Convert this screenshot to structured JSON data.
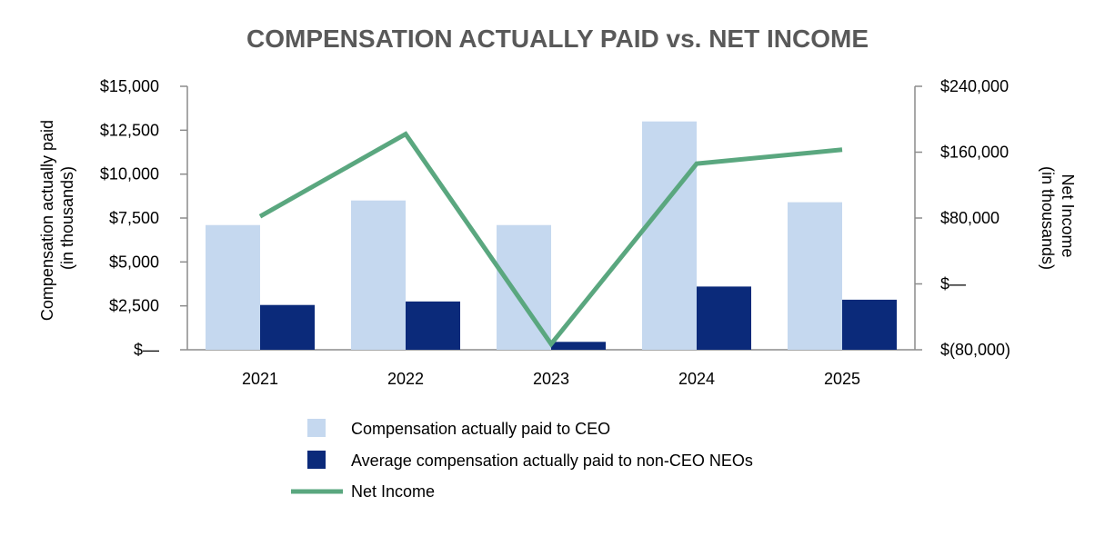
{
  "chart_data": {
    "type": "bar",
    "title": "COMPENSATION ACTUALLY PAID vs. NET INCOME",
    "categories": [
      "2021",
      "2022",
      "2023",
      "2024",
      "2025"
    ],
    "ylabel_left_lines": [
      "Compensation actually paid",
      "(in thousands)"
    ],
    "ylabel_right_lines": [
      "Net Income",
      "(in thousands)"
    ],
    "y_left": {
      "ylim": [
        0,
        15000
      ],
      "ticks": [
        0,
        2500,
        5000,
        7500,
        10000,
        12500,
        15000
      ],
      "tick_labels": [
        "$—",
        "$2,500",
        "$5,000",
        "$7,500",
        "$10,000",
        "$12,500",
        "$15,000"
      ]
    },
    "y_right": {
      "ylim": [
        -80000,
        240000
      ],
      "ticks": [
        -80000,
        0,
        80000,
        160000,
        240000
      ],
      "tick_labels": [
        "$(80,000)",
        "$—",
        "$80,000",
        "$160,000",
        "$240,000"
      ]
    },
    "series": [
      {
        "name": "Compensation actually paid to CEO",
        "kind": "bar",
        "axis": "left",
        "color": "#c5d8ef",
        "values": [
          7100,
          8500,
          7100,
          13000,
          8400
        ]
      },
      {
        "name": "Average compensation actually paid to non-CEO NEOs",
        "kind": "bar",
        "axis": "left",
        "color": "#0b2a7a",
        "values": [
          2550,
          2750,
          450,
          3600,
          2850
        ]
      },
      {
        "name": "Net Income",
        "kind": "line",
        "axis": "right",
        "color": "#5aa77f",
        "values": [
          82000,
          182000,
          -73000,
          146000,
          163000
        ]
      }
    ]
  }
}
